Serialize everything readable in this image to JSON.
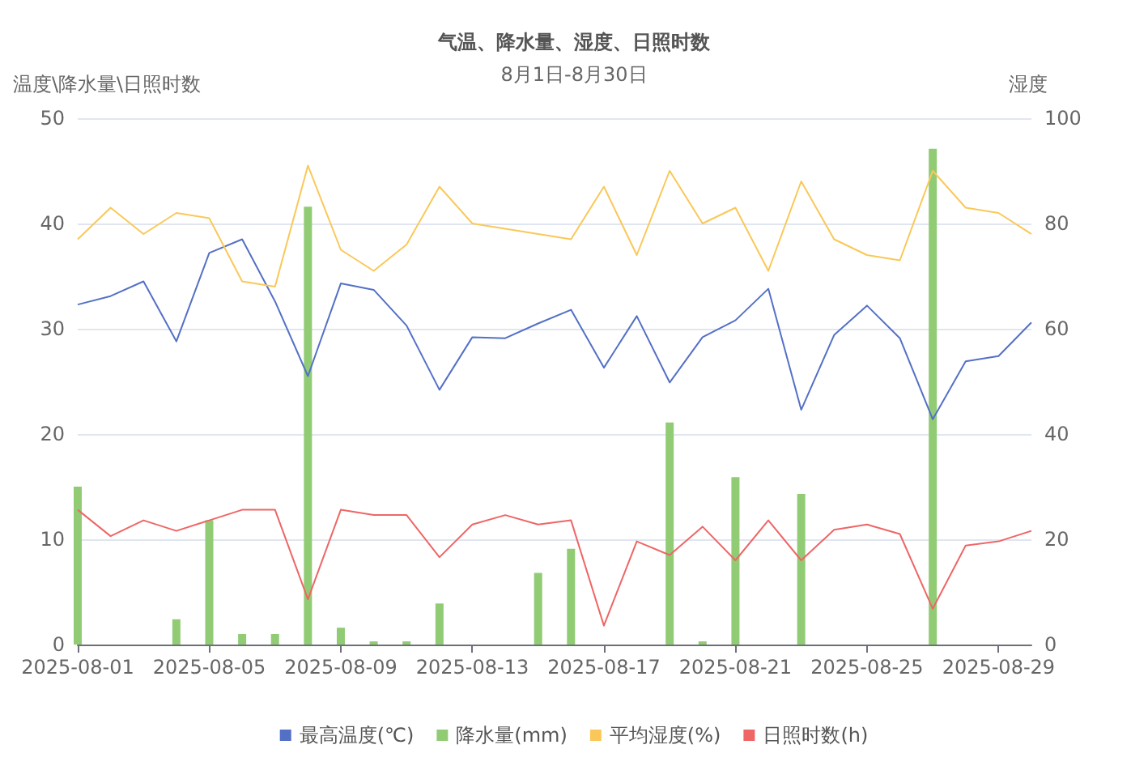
{
  "chart_data": {
    "type": "line",
    "title": "气温、降水量、湿度、日照时数",
    "subtitle": "8月1日-8月30日",
    "ylabel": "温度\\降水量\\日照时数",
    "y2label": "湿度",
    "x": [
      "2025-08-01",
      "2025-08-02",
      "2025-08-03",
      "2025-08-04",
      "2025-08-05",
      "2025-08-06",
      "2025-08-07",
      "2025-08-08",
      "2025-08-09",
      "2025-08-10",
      "2025-08-11",
      "2025-08-12",
      "2025-08-13",
      "2025-08-14",
      "2025-08-15",
      "2025-08-16",
      "2025-08-17",
      "2025-08-18",
      "2025-08-19",
      "2025-08-20",
      "2025-08-21",
      "2025-08-22",
      "2025-08-23",
      "2025-08-24",
      "2025-08-25",
      "2025-08-26",
      "2025-08-27",
      "2025-08-28",
      "2025-08-29",
      "2025-08-30"
    ],
    "series": [
      {
        "name": "最高温度(℃)",
        "color": "#5470c6",
        "values": [
          32.3,
          33.1,
          34.5,
          28.8,
          37.2,
          38.5,
          32.6,
          25.5,
          34.3,
          33.7,
          30.3,
          24.2,
          29.2,
          29.1,
          30.5,
          31.8,
          26.3,
          31.2,
          24.9,
          29.2,
          30.8,
          33.8,
          22.3,
          29.4,
          32.2,
          29.1,
          21.4,
          26.9,
          27.4,
          30.6
        ]
      },
      {
        "name": "降水量(mm)",
        "type": "bar",
        "color": "#91cc75",
        "values": [
          15.0,
          0,
          0,
          2.4,
          11.8,
          1.0,
          1.0,
          41.6,
          1.6,
          0.3,
          0.3,
          3.9,
          0,
          0,
          6.8,
          9.1,
          0,
          0,
          21.1,
          0.3,
          15.9,
          0,
          14.3,
          0,
          0,
          0,
          47.1,
          0,
          0,
          0
        ]
      },
      {
        "name": "平均湿度(%)",
        "axis": "y2",
        "color": "#fac858",
        "values": [
          77,
          83,
          78,
          82,
          81,
          69,
          68,
          91,
          75,
          71,
          76,
          87,
          80,
          79,
          78,
          77,
          87,
          74,
          90,
          80,
          83,
          71,
          88,
          77,
          74,
          73,
          90,
          83,
          82,
          78
        ]
      },
      {
        "name": "日照时数(h)",
        "color": "#ee6666",
        "values": [
          12.8,
          10.3,
          11.8,
          10.8,
          11.8,
          12.8,
          12.8,
          4.3,
          12.8,
          12.3,
          12.3,
          8.3,
          11.4,
          12.3,
          11.4,
          11.8,
          1.8,
          9.8,
          8.5,
          11.2,
          8.0,
          11.8,
          8.0,
          10.9,
          11.4,
          10.5,
          3.4,
          9.4,
          9.8,
          10.8
        ]
      }
    ],
    "xlim": [
      "2025-08-01",
      "2025-08-30"
    ],
    "xticks": [
      "2025-08-01",
      "2025-08-05",
      "2025-08-09",
      "2025-08-13",
      "2025-08-17",
      "2025-08-21",
      "2025-08-25",
      "2025-08-29"
    ],
    "ylim": [
      0,
      50
    ],
    "yticks": [
      0,
      10,
      20,
      30,
      40,
      50
    ],
    "y2lim": [
      0,
      100
    ],
    "y2ticks": [
      0,
      20,
      40,
      60,
      80,
      100
    ],
    "grid": "y",
    "legend": "bottom",
    "marker": "none",
    "line_style": "solid"
  }
}
